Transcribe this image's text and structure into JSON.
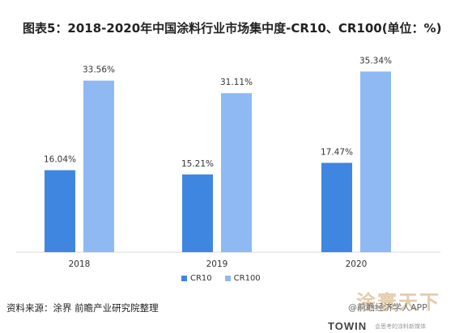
{
  "title": "图表5：2018-2020年中国涂料行业市场集中度-CR10、CR100(单位：%)",
  "chart_data": {
    "type": "bar",
    "categories": [
      "2018",
      "2019",
      "2020"
    ],
    "series": [
      {
        "name": "CR10",
        "values": [
          16.04,
          15.21,
          17.47
        ],
        "labels": [
          "16.04%",
          "15.21%",
          "17.47%"
        ],
        "color": "#3f86e1"
      },
      {
        "name": "CR100",
        "values": [
          33.56,
          31.11,
          35.34
        ],
        "labels": [
          "33.56%",
          "31.11%",
          "35.34%"
        ],
        "color": "#8eb9f3"
      }
    ],
    "ylim": [
      0,
      40
    ],
    "grid": false,
    "legend_position": "bottom"
  },
  "source": "资料来源：涂界 前瞻产业研究院整理",
  "brand": {
    "logo_text": "涂寰天下",
    "account": "@前瞻经济学人APP",
    "towin": "TOWIN",
    "towin_tagline": "会思考的涂料新媒体"
  }
}
